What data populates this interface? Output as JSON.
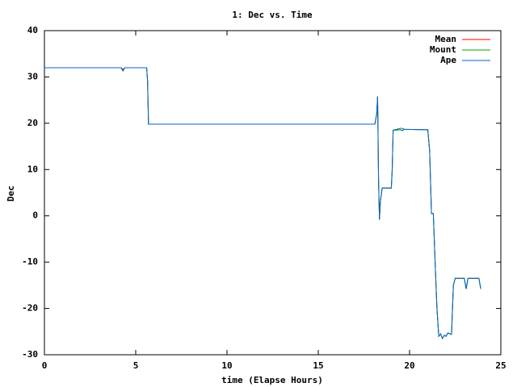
{
  "chart_data": {
    "type": "line",
    "title": "1: Dec vs. Time",
    "x_label": "time (Elapse Hours)",
    "y_label": "Dec",
    "x": [
      0,
      4.2,
      4.3,
      4.4,
      5.6,
      5.65,
      5.7,
      18.1,
      18.2,
      18.25,
      18.3,
      18.35,
      18.4,
      18.5,
      19.0,
      19.05,
      19.1,
      19.5,
      19.6,
      19.7,
      21.0,
      21.1,
      21.2,
      21.3,
      21.4,
      21.5,
      21.6,
      21.7,
      21.8,
      21.9,
      22.0,
      22.1,
      22.3,
      22.4,
      22.5,
      23.0,
      23.1,
      23.2,
      23.8,
      23.9
    ],
    "series": [
      {
        "name": "Mean",
        "color": "#ff0000",
        "values": [
          32,
          32,
          31.6,
          32,
          32,
          29,
          19.8,
          19.8,
          22,
          25.8,
          8,
          -0.8,
          3,
          6,
          6,
          10,
          18.5,
          18.6,
          18.4,
          18.7,
          18.6,
          14,
          0.5,
          0.5,
          -10,
          -20,
          -26,
          -25.5,
          -26.5,
          -25.8,
          -26,
          -25.3,
          -25.6,
          -15,
          -13.5,
          -13.5,
          -15.8,
          -13.5,
          -13.5,
          -15.8
        ]
      },
      {
        "name": "Mount",
        "color": "#00a000",
        "values": [
          32,
          32,
          31.3,
          32,
          32,
          29,
          19.8,
          19.8,
          22,
          25.8,
          8,
          -0.8,
          3,
          6,
          6,
          10,
          18.5,
          18.9,
          18.9,
          18.7,
          18.6,
          14,
          0.5,
          0.5,
          -10,
          -20,
          -26,
          -25.5,
          -26.5,
          -25.8,
          -26,
          -25.3,
          -25.6,
          -15,
          -13.5,
          -13.5,
          -15.8,
          -13.5,
          -13.5,
          -15.8
        ]
      },
      {
        "name": "Ape",
        "color": "#0066cc",
        "values": [
          32,
          32,
          31.3,
          32,
          32,
          29,
          19.8,
          19.8,
          22,
          25.8,
          8,
          -0.8,
          3,
          6,
          6,
          10,
          18.5,
          18.6,
          18.4,
          18.7,
          18.6,
          14,
          0.5,
          0.5,
          -10,
          -20,
          -26,
          -25.5,
          -26.5,
          -25.8,
          -26,
          -25.3,
          -25.6,
          -15,
          -13.5,
          -13.5,
          -15.8,
          -13.5,
          -13.5,
          -15.8
        ]
      }
    ],
    "xlim": [
      0,
      25
    ],
    "xticks": [
      0,
      5,
      10,
      15,
      20,
      25
    ],
    "ylim": [
      -30,
      40
    ],
    "yticks": [
      -30,
      -20,
      -10,
      0,
      10,
      20,
      30,
      40
    ],
    "legend": "top-right",
    "grid": false
  }
}
